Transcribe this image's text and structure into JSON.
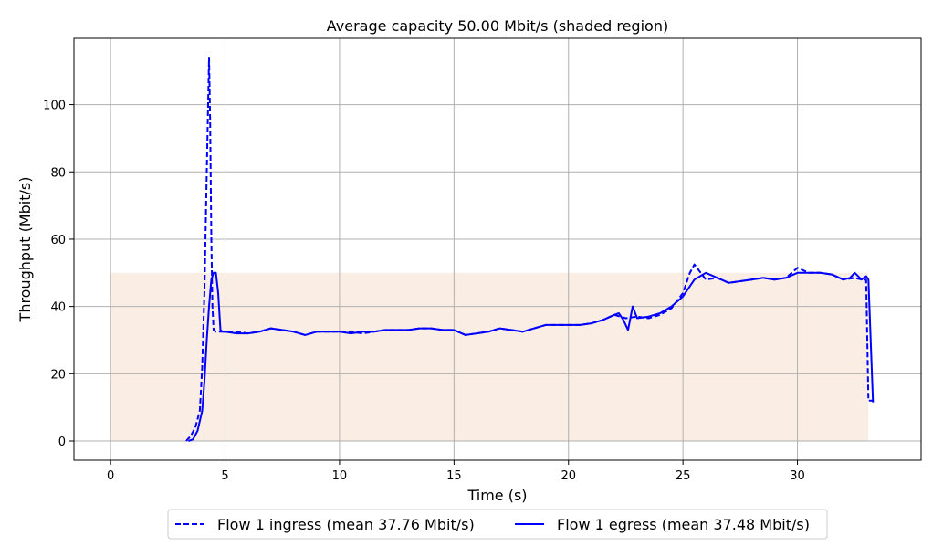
{
  "chart_data": {
    "type": "line",
    "title": "Average capacity 50.00 Mbit/s (shaded region)",
    "xlabel": "Time (s)",
    "ylabel": "Throughput (Mbit/s)",
    "xlim": [
      -1.6,
      35.4
    ],
    "ylim": [
      -5.7,
      119.7
    ],
    "xticks": [
      0,
      5,
      10,
      15,
      20,
      25,
      30
    ],
    "yticks": [
      0,
      20,
      40,
      60,
      80,
      100
    ],
    "grid": true,
    "legend_position": "bottom-center",
    "shaded_region": {
      "x": [
        0,
        33.1
      ],
      "y": [
        0,
        50
      ],
      "color": "#faeee4"
    },
    "series": [
      {
        "name": "Flow 1 ingress (mean 37.76 Mbit/s)",
        "color": "#0000ff",
        "style": "dashed",
        "x": [
          3.3,
          3.5,
          3.7,
          3.9,
          4.0,
          4.1,
          4.2,
          4.3,
          4.35,
          4.4,
          4.45,
          4.5,
          4.6,
          4.7,
          4.8,
          5.0,
          5.5,
          6.0,
          6.5,
          7.0,
          7.5,
          8.0,
          8.5,
          9.0,
          9.5,
          10.0,
          10.5,
          11.0,
          11.5,
          12.0,
          12.5,
          13.0,
          13.5,
          14.0,
          14.5,
          15.0,
          15.5,
          16.0,
          16.5,
          17.0,
          17.5,
          18.0,
          18.5,
          19.0,
          19.5,
          20.0,
          20.5,
          21.0,
          21.5,
          22.0,
          22.5,
          23.0,
          23.5,
          24.0,
          24.5,
          25.0,
          25.3,
          25.5,
          26.0,
          26.5,
          27.0,
          27.5,
          28.0,
          28.5,
          29.0,
          29.5,
          30.0,
          30.5,
          31.0,
          31.5,
          32.0,
          32.5,
          32.8,
          33.0,
          33.1,
          33.3
        ],
        "values": [
          0,
          1.5,
          4,
          9,
          22,
          45,
          80,
          114,
          95,
          60,
          40,
          33,
          32.5,
          32.5,
          32.5,
          32.5,
          32.5,
          32,
          32.5,
          33.5,
          33,
          32.5,
          31.5,
          32.5,
          32.5,
          32.5,
          32.5,
          32,
          32.5,
          33,
          33,
          33,
          33.5,
          33.5,
          33,
          33,
          31.5,
          32,
          32.5,
          33.5,
          33,
          32.5,
          33.5,
          34.5,
          34.5,
          34.5,
          34.5,
          35,
          36,
          37.5,
          36.5,
          37,
          36.5,
          37.5,
          39.5,
          44,
          50,
          52.5,
          48,
          48.5,
          47,
          47.5,
          48,
          48.5,
          48,
          48.5,
          51.5,
          50,
          50,
          49.5,
          48,
          48.5,
          48,
          48,
          12,
          12
        ]
      },
      {
        "name": "Flow 1 egress (mean 37.48 Mbit/s)",
        "color": "#0000ff",
        "style": "solid",
        "x": [
          3.4,
          3.6,
          3.8,
          4.0,
          4.1,
          4.2,
          4.3,
          4.4,
          4.5,
          4.6,
          4.7,
          4.8,
          4.9,
          5.0,
          5.5,
          6.0,
          6.5,
          7.0,
          7.5,
          8.0,
          8.5,
          9.0,
          9.5,
          10.0,
          10.5,
          11.0,
          11.5,
          12.0,
          12.5,
          13.0,
          13.5,
          14.0,
          14.5,
          15.0,
          15.5,
          16.0,
          16.5,
          17.0,
          17.5,
          18.0,
          18.5,
          19.0,
          19.5,
          20.0,
          20.5,
          21.0,
          21.5,
          22.0,
          22.2,
          22.4,
          22.6,
          22.8,
          23.0,
          23.5,
          24.0,
          24.5,
          25.0,
          25.5,
          26.0,
          26.5,
          27.0,
          27.5,
          28.0,
          28.5,
          29.0,
          29.5,
          30.0,
          30.5,
          31.0,
          31.5,
          32.0,
          32.3,
          32.5,
          32.8,
          33.0,
          33.1,
          33.3
        ],
        "values": [
          0,
          0.5,
          3,
          9,
          18,
          30,
          40,
          48,
          50,
          50,
          44,
          33,
          32.5,
          32.5,
          32,
          32,
          32.5,
          33.5,
          33,
          32.5,
          31.5,
          32.5,
          32.5,
          32.5,
          32,
          32.5,
          32.5,
          33,
          33,
          33,
          33.5,
          33.5,
          33,
          33,
          31.5,
          32,
          32.5,
          33.5,
          33,
          32.5,
          33.5,
          34.5,
          34.5,
          34.5,
          34.5,
          35,
          36,
          37.5,
          38,
          36,
          33,
          40,
          36.5,
          37,
          38,
          40,
          43,
          48,
          50,
          48.5,
          47,
          47.5,
          48,
          48.5,
          48,
          48.5,
          50,
          50,
          50,
          49.5,
          48,
          48.5,
          50,
          48,
          49,
          48,
          11.5
        ]
      }
    ]
  }
}
